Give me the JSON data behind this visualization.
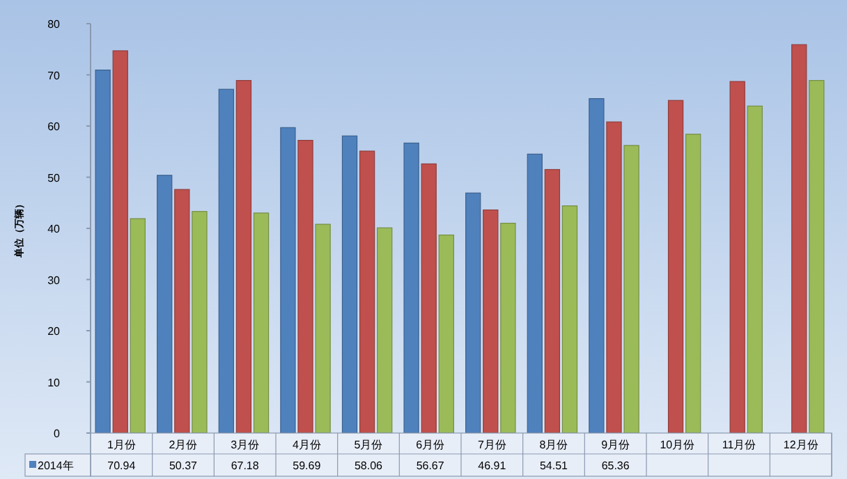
{
  "chart_data": {
    "type": "bar",
    "ylabel": "单位（万辆）",
    "categories": [
      "1月份",
      "2月份",
      "3月份",
      "4月份",
      "5月份",
      "6月份",
      "7月份",
      "8月份",
      "9月份",
      "10月份",
      "11月份",
      "12月份"
    ],
    "series": [
      {
        "name": "2014年",
        "color": "#4f81bd",
        "values": [
          70.94,
          50.37,
          67.18,
          59.69,
          58.06,
          56.67,
          46.91,
          54.51,
          65.36,
          null,
          null,
          null
        ],
        "value_labels": [
          "70.94",
          "50.37",
          "67.18",
          "59.69",
          "58.06",
          "56.67",
          "46.91",
          "54.51",
          "65.36",
          null,
          null,
          null
        ]
      },
      {
        "color": "#c0504d",
        "values": [
          74.7,
          47.6,
          68.9,
          57.2,
          55.1,
          52.6,
          43.6,
          51.5,
          60.8,
          65.0,
          68.7,
          75.9
        ]
      },
      {
        "color": "#9bbb59",
        "values": [
          41.9,
          43.3,
          43.0,
          40.8,
          40.1,
          38.7,
          41.0,
          44.4,
          56.2,
          58.4,
          63.9,
          68.9
        ]
      }
    ],
    "ylim": [
      0,
      80
    ],
    "yticks": [
      0,
      10,
      20,
      30,
      40,
      50,
      60,
      70,
      80
    ],
    "legend": "bottom"
  }
}
